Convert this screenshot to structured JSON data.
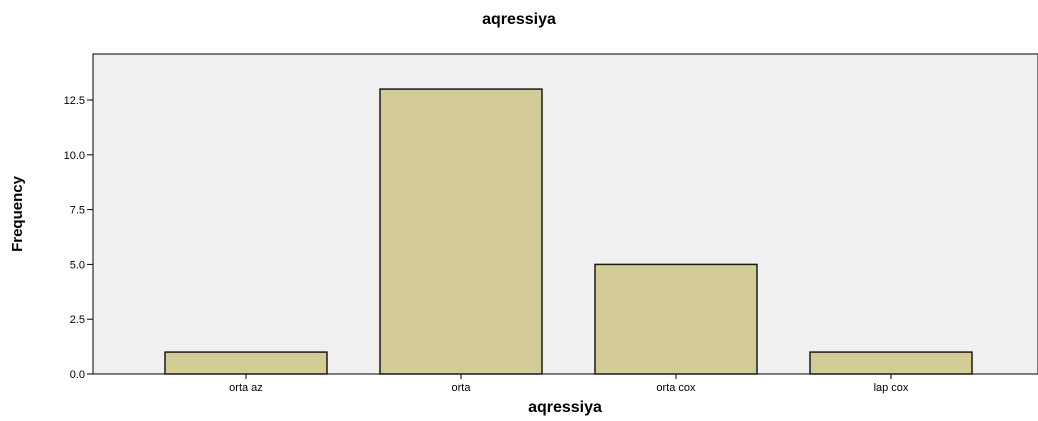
{
  "chart_data": {
    "type": "bar",
    "title": "aqressiya",
    "xlabel": "aqressiya",
    "ylabel": "Frequency",
    "categories": [
      "orta az",
      "orta",
      "orta cox",
      "lap cox"
    ],
    "values": [
      1,
      13,
      5,
      1
    ],
    "ylim": [
      0,
      14.6
    ],
    "yticks": [
      0.0,
      2.5,
      5.0,
      7.5,
      10.0,
      12.5
    ],
    "ytick_labels": [
      "0.0",
      "2.5",
      "5.0",
      "7.5",
      "10.0",
      "12.5"
    ],
    "grid": false,
    "legend": "none",
    "colors": {
      "bar_fill": "#d3cc97",
      "bar_stroke": "#1a1a1a",
      "plot_background": "#f0f0f0",
      "axis": "#000000"
    }
  }
}
